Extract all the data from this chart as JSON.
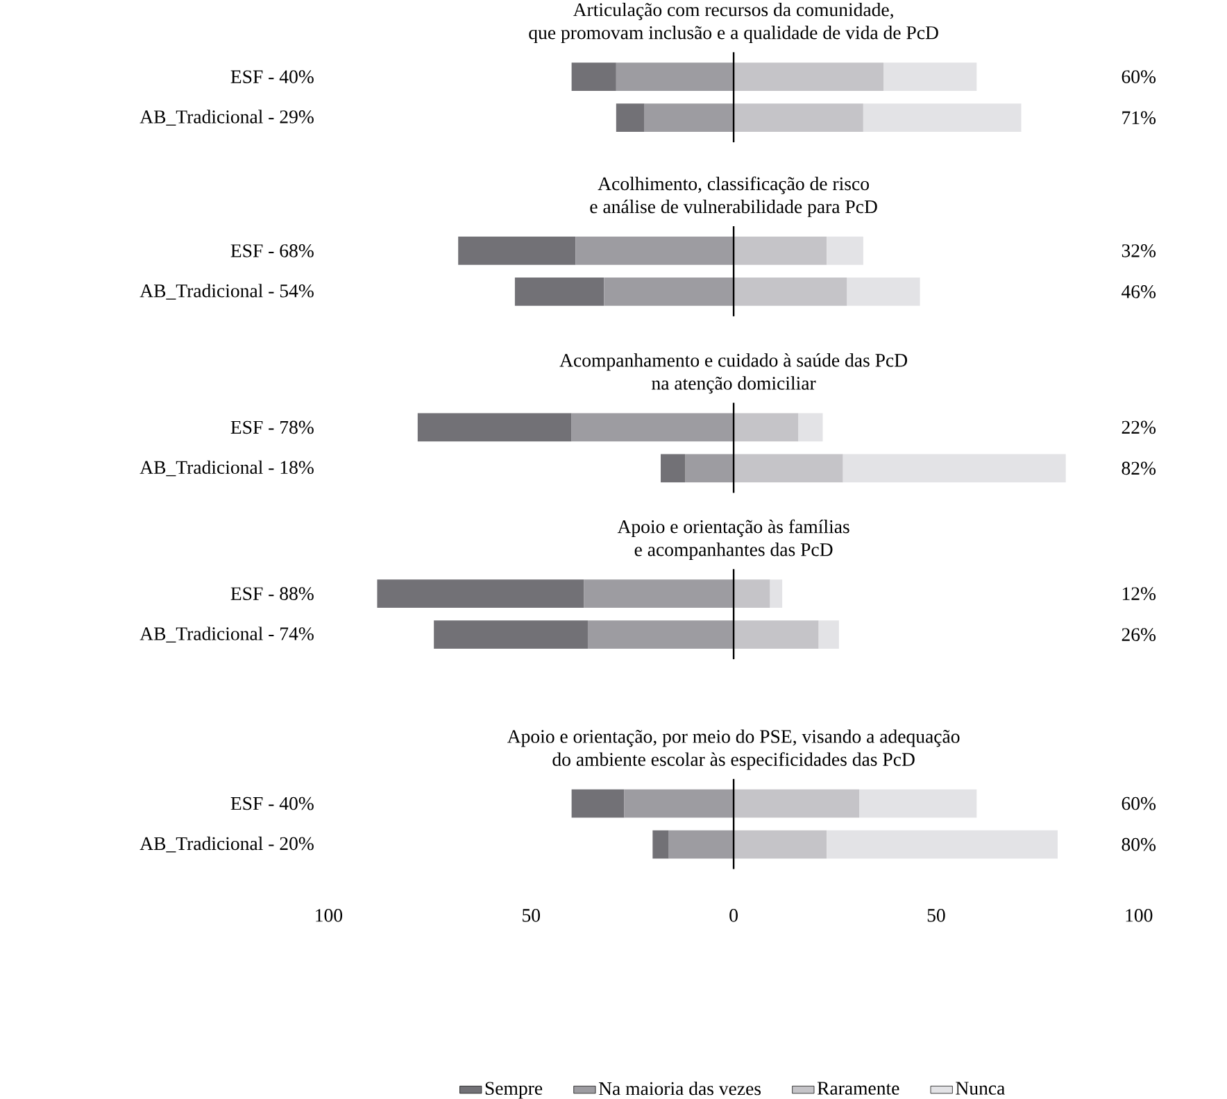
{
  "chart_data": [
    {
      "type": "bar",
      "orientation": "horizontal",
      "stacked": true,
      "title": "Articulação com recursos da comunidade,",
      "subtitle": "que promovam inclusão e a qualidade de vida de PcD",
      "categories": [
        "ESF - 40%",
        "AB_Tradicional - 29%"
      ],
      "series": [
        {
          "color": "#727176",
          "values": [
            -11,
            -7
          ]
        },
        {
          "color": "#9d9ca1",
          "values": [
            -29,
            -22
          ]
        },
        {
          "color": "#c5c4c8",
          "values": [
            37,
            32
          ]
        },
        {
          "color": "#e3e3e6",
          "values": [
            23,
            39
          ]
        }
      ],
      "annotations": [
        "60%",
        "71%"
      ],
      "xlim": [
        -100,
        100
      ],
      "tick_labels": "y"
    },
    {
      "type": "bar",
      "orientation": "horizontal",
      "stacked": true,
      "title": "Acolhimento, classificação de risco",
      "subtitle": "e análise de vulnerabilidade para PcD",
      "categories": [
        "ESF - 68%",
        "AB_Tradicional - 54%"
      ],
      "series": [
        {
          "color": "#727176",
          "values": [
            -29,
            -22
          ]
        },
        {
          "color": "#9d9ca1",
          "values": [
            -39,
            -32
          ]
        },
        {
          "color": "#c5c4c8",
          "values": [
            23,
            28
          ]
        },
        {
          "color": "#e3e3e6",
          "values": [
            9,
            18
          ]
        }
      ],
      "annotations": [
        "32%",
        "46%"
      ],
      "xlim": [
        -100,
        100
      ],
      "tick_labels": "y"
    },
    {
      "type": "bar",
      "orientation": "horizontal",
      "stacked": true,
      "title": "Acompanhamento e cuidado à saúde das PcD",
      "subtitle": "na atenção domiciliar",
      "categories": [
        "ESF - 78%",
        "AB_Tradicional - 18%"
      ],
      "series": [
        {
          "color": "#727176",
          "values": [
            -38,
            -6
          ]
        },
        {
          "color": "#9d9ca1",
          "values": [
            -40,
            -12
          ]
        },
        {
          "color": "#c5c4c8",
          "values": [
            16,
            27
          ]
        },
        {
          "color": "#e3e3e6",
          "values": [
            6,
            55
          ]
        }
      ],
      "annotations": [
        "22%",
        "82%"
      ],
      "xlim": [
        -100,
        100
      ],
      "tick_labels": "y"
    },
    {
      "type": "bar",
      "orientation": "horizontal",
      "stacked": true,
      "title": "Apoio e orientação às famílias",
      "subtitle": "e acompanhantes das PcD",
      "categories": [
        "ESF - 88%",
        "AB_Tradicional - 74%"
      ],
      "series": [
        {
          "color": "#727176",
          "values": [
            -51,
            -38
          ]
        },
        {
          "color": "#9d9ca1",
          "values": [
            -37,
            -36
          ]
        },
        {
          "color": "#c5c4c8",
          "values": [
            9,
            21
          ]
        },
        {
          "color": "#e3e3e6",
          "values": [
            3,
            5
          ]
        }
      ],
      "annotations": [
        "12%",
        "26%"
      ],
      "xlim": [
        -100,
        100
      ],
      "tick_labels": "y"
    },
    {
      "type": "bar",
      "orientation": "horizontal",
      "stacked": true,
      "title": "Apoio e orientação, por meio do PSE, visando a adequação",
      "subtitle": "do ambiente escolar às especificidades das PcD",
      "categories": [
        "ESF - 40%",
        "AB_Tradicional - 20%"
      ],
      "series": [
        {
          "name": "Sempre",
          "color": "#727176",
          "values": [
            -13,
            -4
          ]
        },
        {
          "name": "Na maioria das vezes",
          "color": "#9d9ca1",
          "values": [
            -27,
            -16
          ]
        },
        {
          "name": "Raramente",
          "color": "#c5c4c8",
          "values": [
            31,
            23
          ]
        },
        {
          "name": "Nunca",
          "color": "#e3e3e6",
          "values": [
            29,
            57
          ]
        }
      ],
      "annotations": [
        "60%",
        "80%"
      ],
      "xlim": [
        -100,
        100
      ],
      "xticks": [
        {
          "value": -100,
          "label": "100"
        },
        {
          "value": -50,
          "label": "50"
        },
        0,
        50,
        100
      ],
      "legend": "bottom"
    }
  ]
}
